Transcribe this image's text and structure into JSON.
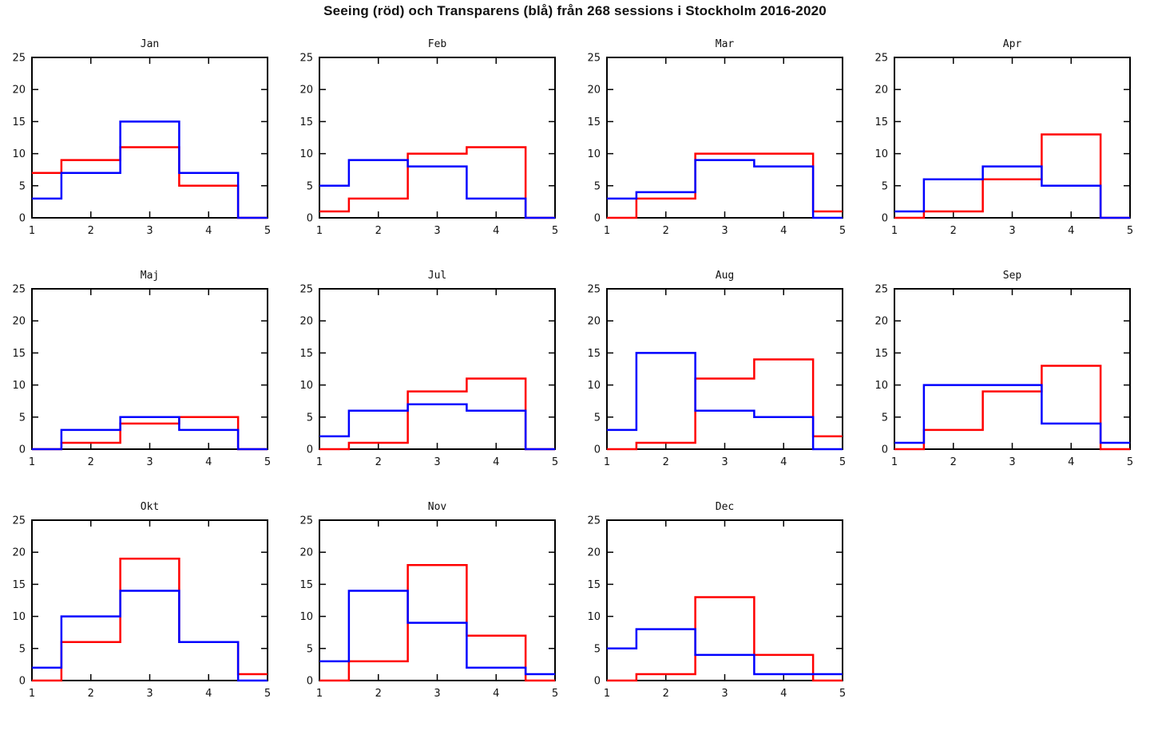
{
  "title": "Seeing (röd) och Transparens (blå) från 268 sessions i Stockholm 2016-2020",
  "colors": {
    "seeing_red": "#ff0000",
    "transparens_blue": "#0000ff",
    "axis": "#000000",
    "background": "#ffffff"
  },
  "chart_data": {
    "type": "line",
    "style": "step-histogram",
    "grid": false,
    "legend": "embedded-in-title",
    "series_labels": {
      "red": "Seeing",
      "blue": "Transparens"
    },
    "total_sessions": 268,
    "x_edges": [
      1,
      1.5,
      2.5,
      3.5,
      4.5,
      5
    ],
    "xlim": [
      1,
      5
    ],
    "ylim": [
      0,
      25
    ],
    "x_ticks": [
      "1",
      "2",
      "3",
      "4",
      "5"
    ],
    "y_ticks": [
      "0",
      "5",
      "10",
      "15",
      "20",
      "25"
    ],
    "subplots": [
      {
        "title": "Jan",
        "red": [
          7,
          9,
          11,
          5,
          0
        ],
        "blue": [
          3,
          7,
          15,
          7,
          0
        ]
      },
      {
        "title": "Feb",
        "red": [
          1,
          3,
          10,
          11,
          0
        ],
        "blue": [
          5,
          9,
          8,
          3,
          0
        ]
      },
      {
        "title": "Mar",
        "red": [
          0,
          3,
          10,
          10,
          1
        ],
        "blue": [
          3,
          4,
          9,
          8,
          0
        ]
      },
      {
        "title": "Apr",
        "red": [
          0,
          1,
          6,
          13,
          0
        ],
        "blue": [
          1,
          6,
          8,
          5,
          0
        ]
      },
      {
        "title": "Maj",
        "red": [
          0,
          1,
          4,
          5,
          0
        ],
        "blue": [
          0,
          3,
          5,
          3,
          0
        ]
      },
      {
        "title": "Jul",
        "red": [
          0,
          1,
          9,
          11,
          0
        ],
        "blue": [
          2,
          6,
          7,
          6,
          0
        ]
      },
      {
        "title": "Aug",
        "red": [
          0,
          1,
          11,
          14,
          2
        ],
        "blue": [
          3,
          15,
          6,
          5,
          0
        ]
      },
      {
        "title": "Sep",
        "red": [
          0,
          3,
          9,
          13,
          0
        ],
        "blue": [
          1,
          10,
          10,
          4,
          1
        ]
      },
      {
        "title": "Okt",
        "red": [
          0,
          6,
          19,
          6,
          1
        ],
        "blue": [
          2,
          10,
          14,
          6,
          0
        ]
      },
      {
        "title": "Nov",
        "red": [
          0,
          3,
          18,
          7,
          0
        ],
        "blue": [
          3,
          14,
          9,
          2,
          1
        ]
      },
      {
        "title": "Dec",
        "red": [
          0,
          1,
          13,
          4,
          0
        ],
        "blue": [
          5,
          8,
          4,
          1,
          1
        ]
      }
    ]
  }
}
